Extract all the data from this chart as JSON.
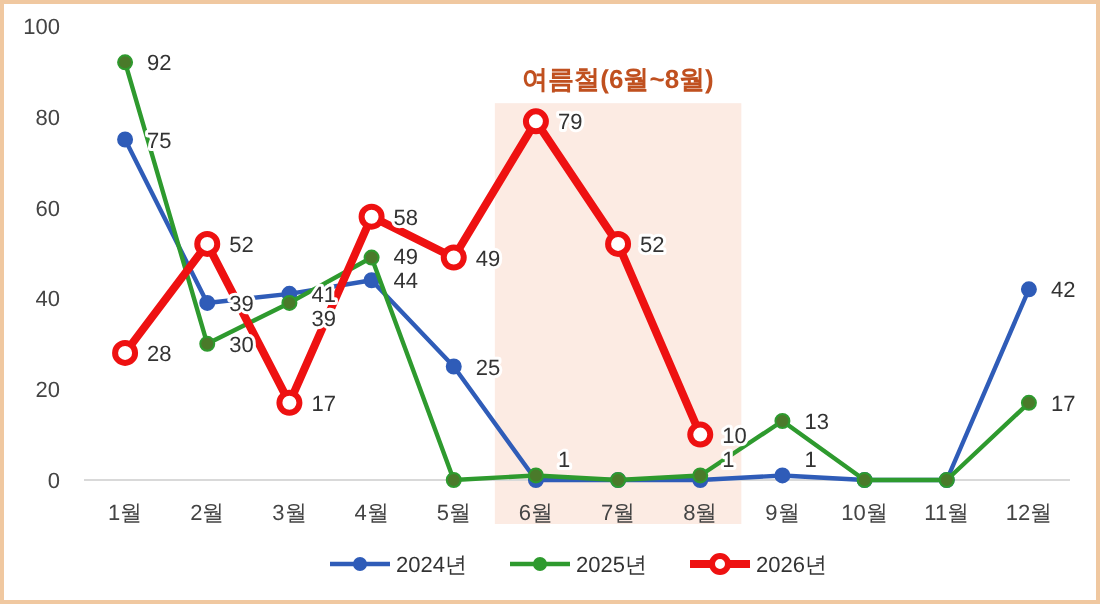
{
  "chart_data": {
    "type": "line",
    "categories": [
      "1월",
      "2월",
      "3월",
      "4월",
      "5월",
      "6월",
      "7월",
      "8월",
      "9월",
      "10월",
      "11월",
      "12월"
    ],
    "ylim": [
      0,
      100
    ],
    "yticks": [
      0,
      20,
      40,
      60,
      80,
      100
    ],
    "grid": false,
    "legend": "bottom",
    "marker": "circle",
    "bands": [
      {
        "axis": "x",
        "from": "6월",
        "to": "8월",
        "label": "여름철(6월~8월)",
        "color": "#fcebe3"
      }
    ],
    "series": [
      {
        "name": "2024년",
        "color": "#2f5cb8",
        "values": [
          75,
          39,
          41,
          44,
          25,
          0,
          0,
          0,
          1,
          0,
          0,
          42
        ],
        "value_labels": [
          "75",
          "39",
          "41",
          "44",
          "25",
          null,
          null,
          null,
          "1",
          null,
          null,
          "42"
        ]
      },
      {
        "name": "2025년",
        "color": "#2e9a2e",
        "values": [
          92,
          30,
          39,
          49,
          0,
          1,
          0,
          1,
          13,
          0,
          0,
          17
        ],
        "value_labels": [
          "92",
          "30",
          "39",
          "49",
          null,
          "1",
          null,
          "1",
          "13",
          null,
          null,
          "17"
        ]
      },
      {
        "name": "2026년",
        "color": "#ee1111",
        "values": [
          28,
          52,
          17,
          58,
          49,
          79,
          52,
          10,
          null,
          null,
          null,
          null
        ],
        "value_labels": [
          "28",
          "52",
          "17",
          "58",
          "49",
          "79",
          "52",
          "10",
          null,
          null,
          null,
          null
        ]
      }
    ]
  }
}
